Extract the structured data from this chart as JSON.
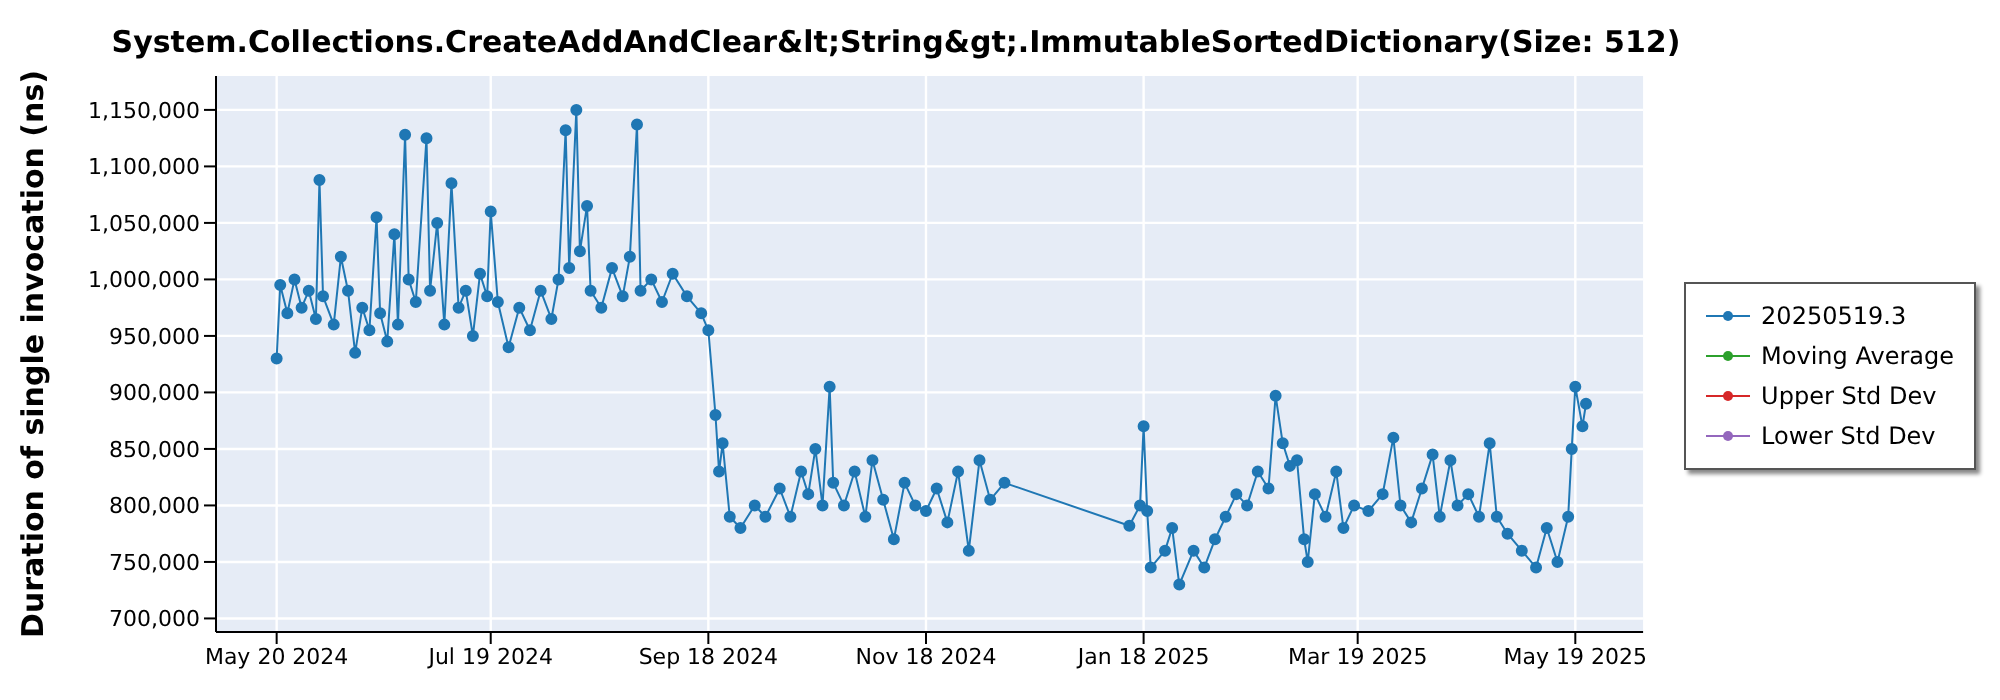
{
  "chart_data": {
    "type": "line",
    "title": "System.Collections.CreateAddAndClear&lt;String&gt;.ImmutableSortedDictionary(Size: 512)",
    "ylabel": "Duration of single invocation (ns)",
    "marker": "circle",
    "grid": true,
    "legend": "right",
    "xlim": [
      "2024-05-03",
      "2025-06-07"
    ],
    "xticks": [
      {
        "value": "2024-05-20",
        "label": "May 20 2024"
      },
      {
        "value": "2024-07-19",
        "label": "Jul 19 2024"
      },
      {
        "value": "2024-09-18",
        "label": "Sep 18 2024"
      },
      {
        "value": "2024-11-18",
        "label": "Nov 18 2024"
      },
      {
        "value": "2025-01-18",
        "label": "Jan 18 2025"
      },
      {
        "value": "2025-03-19",
        "label": "Mar 19 2025"
      },
      {
        "value": "2025-05-19",
        "label": "May 19 2025"
      }
    ],
    "ylim": [
      688000,
      1180000
    ],
    "yticks": [
      {
        "value": 700000,
        "label": "700,000"
      },
      {
        "value": 750000,
        "label": "750,000"
      },
      {
        "value": 800000,
        "label": "800,000"
      },
      {
        "value": 850000,
        "label": "850,000"
      },
      {
        "value": 900000,
        "label": "900,000"
      },
      {
        "value": 950000,
        "label": "950,000"
      },
      {
        "value": 1000000,
        "label": "1,000,000"
      },
      {
        "value": 1050000,
        "label": "1,050,000"
      },
      {
        "value": 1100000,
        "label": "1,100,000"
      },
      {
        "value": 1150000,
        "label": "1,150,000"
      }
    ],
    "x": [
      "2024-05-20",
      "2024-05-21",
      "2024-05-23",
      "2024-05-25",
      "2024-05-27",
      "2024-05-29",
      "2024-05-31",
      "2024-06-01",
      "2024-06-02",
      "2024-06-05",
      "2024-06-07",
      "2024-06-09",
      "2024-06-11",
      "2024-06-13",
      "2024-06-15",
      "2024-06-17",
      "2024-06-18",
      "2024-06-20",
      "2024-06-22",
      "2024-06-23",
      "2024-06-25",
      "2024-06-26",
      "2024-06-28",
      "2024-07-01",
      "2024-07-02",
      "2024-07-04",
      "2024-07-06",
      "2024-07-08",
      "2024-07-10",
      "2024-07-12",
      "2024-07-14",
      "2024-07-16",
      "2024-07-18",
      "2024-07-19",
      "2024-07-21",
      "2024-07-24",
      "2024-07-27",
      "2024-07-30",
      "2024-08-02",
      "2024-08-05",
      "2024-08-07",
      "2024-08-09",
      "2024-08-10",
      "2024-08-12",
      "2024-08-13",
      "2024-08-15",
      "2024-08-16",
      "2024-08-19",
      "2024-08-22",
      "2024-08-25",
      "2024-08-27",
      "2024-08-29",
      "2024-08-30",
      "2024-09-02",
      "2024-09-05",
      "2024-09-08",
      "2024-09-12",
      "2024-09-16",
      "2024-09-18",
      "2024-09-20",
      "2024-09-21",
      "2024-09-22",
      "2024-09-24",
      "2024-09-27",
      "2024-10-01",
      "2024-10-04",
      "2024-10-08",
      "2024-10-11",
      "2024-10-14",
      "2024-10-16",
      "2024-10-18",
      "2024-10-20",
      "2024-10-22",
      "2024-10-23",
      "2024-10-26",
      "2024-10-29",
      "2024-11-01",
      "2024-11-03",
      "2024-11-06",
      "2024-11-09",
      "2024-11-12",
      "2024-11-15",
      "2024-11-18",
      "2024-11-21",
      "2024-11-24",
      "2024-11-27",
      "2024-11-30",
      "2024-12-03",
      "2024-12-06",
      "2024-12-10",
      "2025-01-14",
      "2025-01-17",
      "2025-01-18",
      "2025-01-19",
      "2025-01-20",
      "2025-01-24",
      "2025-01-26",
      "2025-01-28",
      "2025-02-01",
      "2025-02-04",
      "2025-02-07",
      "2025-02-10",
      "2025-02-13",
      "2025-02-16",
      "2025-02-19",
      "2025-02-22",
      "2025-02-24",
      "2025-02-26",
      "2025-02-28",
      "2025-03-02",
      "2025-03-04",
      "2025-03-05",
      "2025-03-07",
      "2025-03-10",
      "2025-03-13",
      "2025-03-15",
      "2025-03-18",
      "2025-03-22",
      "2025-03-26",
      "2025-03-29",
      "2025-03-31",
      "2025-04-03",
      "2025-04-06",
      "2025-04-09",
      "2025-04-11",
      "2025-04-14",
      "2025-04-16",
      "2025-04-19",
      "2025-04-22",
      "2025-04-25",
      "2025-04-27",
      "2025-04-30",
      "2025-05-04",
      "2025-05-08",
      "2025-05-11",
      "2025-05-14",
      "2025-05-17",
      "2025-05-18",
      "2025-05-19",
      "2025-05-21",
      "2025-05-22"
    ],
    "series": [
      {
        "name": "20250519.3",
        "color": "#1f77b4",
        "values": [
          930000,
          995000,
          970000,
          1000000,
          975000,
          990000,
          965000,
          1088000,
          985000,
          960000,
          1020000,
          990000,
          935000,
          975000,
          955000,
          1055000,
          970000,
          945000,
          1040000,
          960000,
          1128000,
          1000000,
          980000,
          1125000,
          990000,
          1050000,
          960000,
          1085000,
          975000,
          990000,
          950000,
          1005000,
          985000,
          1060000,
          980000,
          940000,
          975000,
          955000,
          990000,
          965000,
          1000000,
          1132000,
          1010000,
          1150000,
          1025000,
          1065000,
          990000,
          975000,
          1010000,
          985000,
          1020000,
          1137000,
          990000,
          1000000,
          980000,
          1005000,
          985000,
          970000,
          955000,
          880000,
          830000,
          855000,
          790000,
          780000,
          800000,
          790000,
          815000,
          790000,
          830000,
          810000,
          850000,
          800000,
          905000,
          820000,
          800000,
          830000,
          790000,
          840000,
          805000,
          770000,
          820000,
          800000,
          795000,
          815000,
          785000,
          830000,
          760000,
          840000,
          805000,
          820000,
          782000,
          800000,
          870000,
          795000,
          745000,
          760000,
          780000,
          730000,
          760000,
          745000,
          770000,
          790000,
          810000,
          800000,
          830000,
          815000,
          897000,
          855000,
          835000,
          840000,
          770000,
          750000,
          810000,
          790000,
          830000,
          780000,
          800000,
          795000,
          810000,
          860000,
          800000,
          785000,
          815000,
          845000,
          790000,
          840000,
          800000,
          810000,
          790000,
          855000,
          790000,
          775000,
          760000,
          745000,
          780000,
          750000,
          790000,
          850000,
          905000,
          870000,
          890000
        ]
      },
      {
        "name": "Moving Average",
        "color": "#2ca02c",
        "values": [
          null,
          null,
          null,
          null,
          null,
          null,
          null,
          null,
          null,
          null,
          null,
          null,
          null,
          null,
          null,
          null,
          null,
          null,
          null,
          null,
          null,
          null,
          null,
          null,
          null,
          null,
          null,
          null,
          null,
          null,
          null,
          null,
          null,
          null,
          null,
          null,
          null,
          null,
          null,
          null,
          null,
          null,
          null,
          null,
          null,
          null,
          null,
          null,
          null,
          null,
          null,
          null,
          null,
          null,
          null,
          null,
          null,
          null,
          null,
          null,
          null,
          null,
          null,
          null,
          null,
          null,
          null,
          null,
          null,
          null,
          null,
          null,
          null,
          null,
          null,
          null,
          null,
          null,
          null,
          null,
          null,
          null,
          null,
          null,
          null,
          null,
          null,
          null,
          null,
          null,
          null,
          null,
          null,
          null,
          null,
          null,
          null,
          null,
          null,
          null,
          null,
          null,
          null,
          null,
          null,
          null,
          null,
          null,
          null,
          null,
          null,
          null,
          null,
          null,
          null,
          null,
          null,
          null,
          null,
          null,
          null,
          null,
          null,
          null,
          null,
          null,
          null,
          null,
          null,
          null,
          null,
          null,
          null,
          null,
          null,
          null,
          null,
          null,
          null,
          null,
          null
        ]
      },
      {
        "name": "Upper Std Dev",
        "color": "#d62728",
        "values": [
          null,
          null,
          null,
          null,
          null,
          null,
          null,
          null,
          null,
          null,
          null,
          null,
          null,
          null,
          null,
          null,
          null,
          null,
          null,
          null,
          null,
          null,
          null,
          null,
          null,
          null,
          null,
          null,
          null,
          null,
          null,
          null,
          null,
          null,
          null,
          null,
          null,
          null,
          null,
          null,
          null,
          null,
          null,
          null,
          null,
          null,
          null,
          null,
          null,
          null,
          null,
          null,
          null,
          null,
          null,
          null,
          null,
          null,
          null,
          null,
          null,
          null,
          null,
          null,
          null,
          null,
          null,
          null,
          null,
          null,
          null,
          null,
          null,
          null,
          null,
          null,
          null,
          null,
          null,
          null,
          null,
          null,
          null,
          null,
          null,
          null,
          null,
          null,
          null,
          null,
          null,
          null,
          null,
          null,
          null,
          null,
          null,
          null,
          null,
          null,
          null,
          null,
          null,
          null,
          null,
          null,
          null,
          null,
          null,
          null,
          null,
          null,
          null,
          null,
          null,
          null,
          null,
          null,
          null,
          null,
          null,
          null,
          null,
          null,
          null,
          null,
          null,
          null,
          null,
          null,
          null,
          null,
          null,
          null,
          null,
          null,
          null,
          null,
          null,
          null,
          null
        ]
      },
      {
        "name": "Lower Std Dev",
        "color": "#9467bd",
        "values": [
          null,
          null,
          null,
          null,
          null,
          null,
          null,
          null,
          null,
          null,
          null,
          null,
          null,
          null,
          null,
          null,
          null,
          null,
          null,
          null,
          null,
          null,
          null,
          null,
          null,
          null,
          null,
          null,
          null,
          null,
          null,
          null,
          null,
          null,
          null,
          null,
          null,
          null,
          null,
          null,
          null,
          null,
          null,
          null,
          null,
          null,
          null,
          null,
          null,
          null,
          null,
          null,
          null,
          null,
          null,
          null,
          null,
          null,
          null,
          null,
          null,
          null,
          null,
          null,
          null,
          null,
          null,
          null,
          null,
          null,
          null,
          null,
          null,
          null,
          null,
          null,
          null,
          null,
          null,
          null,
          null,
          null,
          null,
          null,
          null,
          null,
          null,
          null,
          null,
          null,
          null,
          null,
          null,
          null,
          null,
          null,
          null,
          null,
          null,
          null,
          null,
          null,
          null,
          null,
          null,
          null,
          null,
          null,
          null,
          null,
          null,
          null,
          null,
          null,
          null,
          null,
          null,
          null,
          null,
          null,
          null,
          null,
          null,
          null,
          null,
          null,
          null,
          null,
          null,
          null,
          null,
          null,
          null,
          null,
          null,
          null,
          null,
          null,
          null,
          null,
          null
        ]
      }
    ]
  }
}
